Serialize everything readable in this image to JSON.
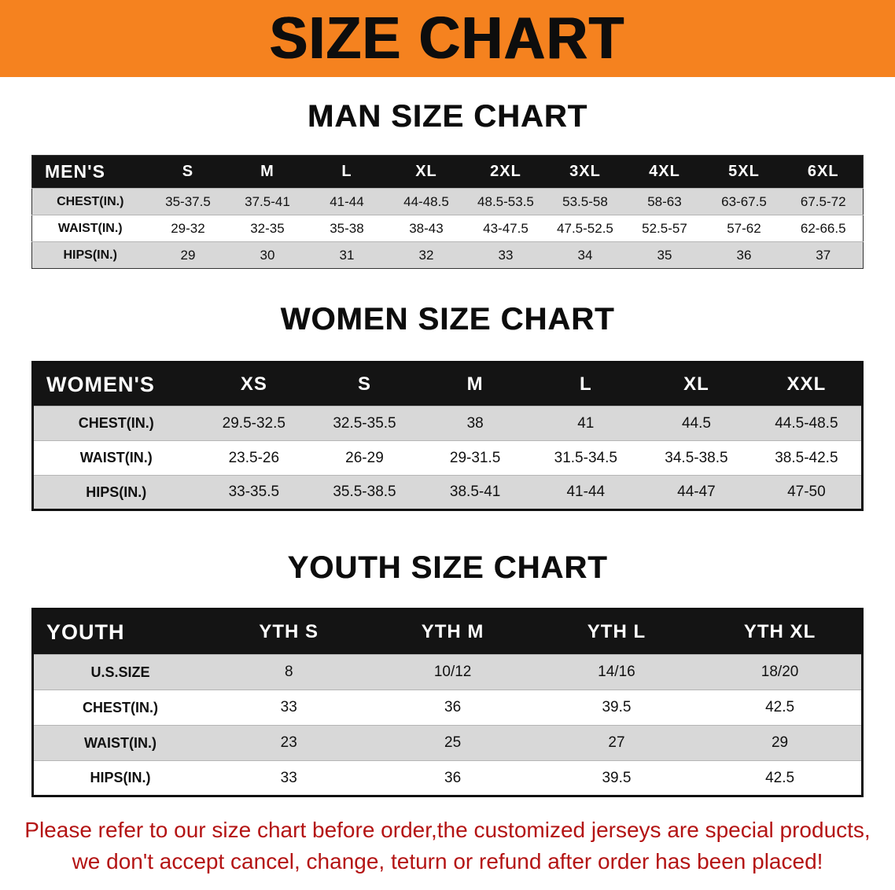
{
  "banner": {
    "title": "SIZE CHART"
  },
  "colors": {
    "banner_bg": "#f5821f",
    "table_header_bg": "#141414",
    "table_header_text": "#ffffff",
    "row_shaded_bg": "#d8d8d8",
    "footer_text": "#b41414"
  },
  "sections": [
    {
      "heading": "MAN SIZE CHART",
      "table": {
        "header": [
          "MEN'S",
          "S",
          "M",
          "L",
          "XL",
          "2XL",
          "3XL",
          "4XL",
          "5XL",
          "6XL"
        ],
        "rows": [
          [
            "CHEST(IN.)",
            "35-37.5",
            "37.5-41",
            "41-44",
            "44-48.5",
            "48.5-53.5",
            "53.5-58",
            "58-63",
            "63-67.5",
            "67.5-72"
          ],
          [
            "WAIST(IN.)",
            "29-32",
            "32-35",
            "35-38",
            "38-43",
            "43-47.5",
            "47.5-52.5",
            "52.5-57",
            "57-62",
            "62-66.5"
          ],
          [
            "HIPS(IN.)",
            "29",
            "30",
            "31",
            "32",
            "33",
            "34",
            "35",
            "36",
            "37"
          ]
        ]
      }
    },
    {
      "heading": "WOMEN SIZE CHART",
      "table": {
        "header": [
          "WOMEN'S",
          "XS",
          "S",
          "M",
          "L",
          "XL",
          "XXL"
        ],
        "rows": [
          [
            "CHEST(IN.)",
            "29.5-32.5",
            "32.5-35.5",
            "38",
            "41",
            "44.5",
            "44.5-48.5"
          ],
          [
            "WAIST(IN.)",
            "23.5-26",
            "26-29",
            "29-31.5",
            "31.5-34.5",
            "34.5-38.5",
            "38.5-42.5"
          ],
          [
            "HIPS(IN.)",
            "33-35.5",
            "35.5-38.5",
            "38.5-41",
            "41-44",
            "44-47",
            "47-50"
          ]
        ]
      }
    },
    {
      "heading": "YOUTH SIZE CHART",
      "table": {
        "header": [
          "YOUTH",
          "YTH S",
          "YTH M",
          "YTH L",
          "YTH XL"
        ],
        "rows": [
          [
            "U.S.SIZE",
            "8",
            "10/12",
            "14/16",
            "18/20"
          ],
          [
            "CHEST(IN.)",
            "33",
            "36",
            "39.5",
            "42.5"
          ],
          [
            "WAIST(IN.)",
            "23",
            "25",
            "27",
            "29"
          ],
          [
            "HIPS(IN.)",
            "33",
            "36",
            "39.5",
            "42.5"
          ]
        ]
      }
    }
  ],
  "footer": {
    "line1": "Please refer to our size chart before order,the customized jerseys are special products,",
    "line2": "we don't accept cancel, change, teturn or refund after order has been placed!"
  }
}
